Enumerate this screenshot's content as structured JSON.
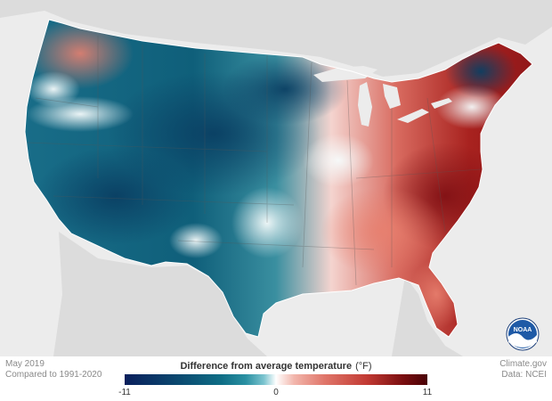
{
  "map": {
    "period": "May 2019",
    "baseline": "Compared to 1991-2020",
    "legend_title": "Difference from average temperature",
    "legend_unit": "(°F)",
    "legend_min": "-11",
    "legend_mid": "0",
    "legend_max": "11",
    "source": "Climate.gov",
    "data_credit": "Data: NCEI",
    "logo_text": "NOAA"
  },
  "colors": {
    "cold_extreme": "#0a1f5c",
    "cold": "#0f6e86",
    "neutral": "#ffffff",
    "warm": "#e0766a",
    "warm_extreme": "#4a0206",
    "land_outside": "#dcdcdc",
    "water": "#ececec"
  }
}
